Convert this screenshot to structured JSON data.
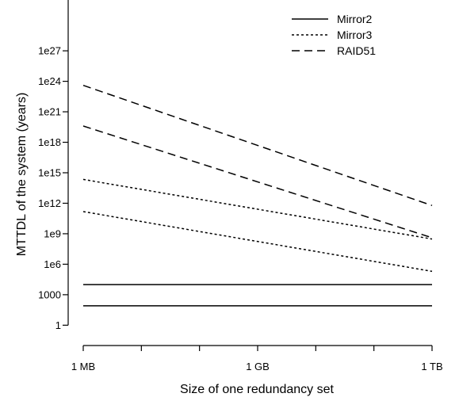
{
  "chart_data": {
    "type": "line",
    "title": "",
    "xlabel": "Size of one redundancy set",
    "ylabel": "MTTDL of the system (years)",
    "x_scale": "log10",
    "y_scale": "log10",
    "x_ticks": [
      {
        "value": 1000000.0,
        "label": "1 MB"
      },
      {
        "value": 10000000.0,
        "label": ""
      },
      {
        "value": 100000000.0,
        "label": ""
      },
      {
        "value": 1000000000.0,
        "label": "1 GB"
      },
      {
        "value": 10000000000.0,
        "label": ""
      },
      {
        "value": 100000000000.0,
        "label": ""
      },
      {
        "value": 1000000000000.0,
        "label": "1 TB"
      }
    ],
    "y_ticks": [
      {
        "value": 1,
        "label": "1"
      },
      {
        "value": 1000.0,
        "label": "1000"
      },
      {
        "value": 1000000.0,
        "label": "1e6"
      },
      {
        "value": 1000000000.0,
        "label": "1e9"
      },
      {
        "value": 1000000000000.0,
        "label": "1e12"
      },
      {
        "value": 1000000000000000.0,
        "label": "1e15"
      },
      {
        "value": 1e+18,
        "label": "1e18"
      },
      {
        "value": 1e+21,
        "label": "1e21"
      },
      {
        "value": 1e+24,
        "label": "1e24"
      },
      {
        "value": 1e+27,
        "label": "1e27"
      }
    ],
    "xlim": [
      1000000.0,
      1000000000000.0
    ],
    "ylim": [
      0.01,
      1e+32
    ],
    "grid": false,
    "legend_position": "top-right",
    "legend": [
      {
        "name": "Mirror2",
        "dash": "solid"
      },
      {
        "name": "Mirror3",
        "dash": "dotted"
      },
      {
        "name": "RAID51",
        "dash": "dashed"
      }
    ],
    "series": [
      {
        "group": "Mirror2",
        "dash": "solid",
        "x": [
          1000000.0,
          1000000000000.0
        ],
        "y": [
          10000,
          10000
        ]
      },
      {
        "group": "Mirror2",
        "dash": "solid",
        "x": [
          1000000.0,
          1000000000000.0
        ],
        "y": [
          80,
          80
        ]
      },
      {
        "group": "Mirror3",
        "dash": "dotted",
        "x": [
          1000000.0,
          1000000000000.0
        ],
        "y": [
          220000000000000.0,
          300000000.0
        ]
      },
      {
        "group": "Mirror3",
        "dash": "dotted",
        "x": [
          1000000.0,
          1000000000000.0
        ],
        "y": [
          150000000000.0,
          200000.0
        ]
      },
      {
        "group": "RAID51",
        "dash": "dashed",
        "x": [
          1000000.0,
          1000000000000.0
        ],
        "y": [
          4e+23,
          600000000000.0
        ]
      },
      {
        "group": "RAID51",
        "dash": "dashed",
        "x": [
          1000000.0,
          1000000000000.0
        ],
        "y": [
          4e+19,
          400000000.0
        ]
      }
    ]
  }
}
